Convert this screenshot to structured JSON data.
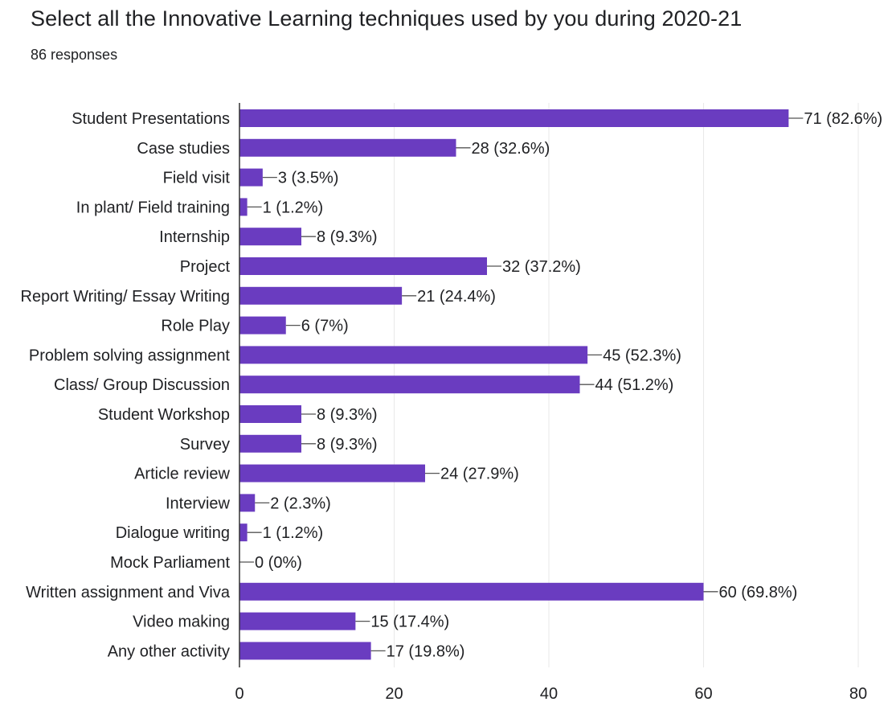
{
  "header": {
    "title": "Select all the Innovative Learning techniques used by you during 2020-21",
    "subtitle": "86 responses"
  },
  "colors": {
    "bar": "#6a3cc0",
    "grid": "#e8e8e8",
    "axis": "#333333",
    "connector": "#555555"
  },
  "chart_data": {
    "type": "bar",
    "orientation": "horizontal",
    "categories": [
      "Student Presentations",
      "Case studies",
      "Field visit",
      "In plant/ Field training",
      "Internship",
      "Project",
      "Report Writing/ Essay Writing",
      "Role Play",
      "Problem solving assignment",
      "Class/ Group Discussion",
      "Student Workshop",
      "Survey",
      "Article review",
      "Interview",
      "Dialogue writing",
      "Mock Parliament",
      "Written assignment and Viva",
      "Video making",
      "Any other activity"
    ],
    "values": [
      71,
      28,
      3,
      1,
      8,
      32,
      21,
      6,
      45,
      44,
      8,
      8,
      24,
      2,
      1,
      0,
      60,
      15,
      17
    ],
    "data_labels": [
      "71 (82.6%)",
      "28 (32.6%)",
      "3 (3.5%)",
      "1 (1.2%)",
      "8 (9.3%)",
      "32 (37.2%)",
      "21 (24.4%)",
      "6 (7%)",
      "45 (52.3%)",
      "44 (51.2%)",
      "8 (9.3%)",
      "8 (9.3%)",
      "24 (27.9%)",
      "2 (2.3%)",
      "1 (1.2%)",
      "0 (0%)",
      "60 (69.8%)",
      "15 (17.4%)",
      "17 (19.8%)"
    ],
    "xlim": [
      0,
      80
    ],
    "xticks": [
      0,
      20,
      40,
      60,
      80
    ],
    "grid": true
  }
}
